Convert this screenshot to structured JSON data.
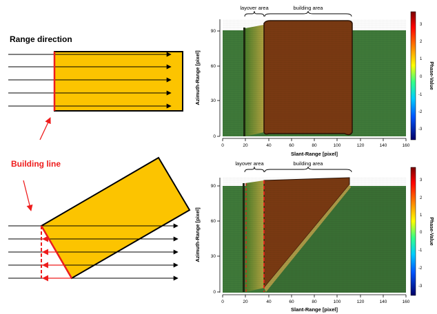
{
  "left": {
    "range_direction": "Range direction",
    "building_line": "Building line"
  },
  "colors": {
    "building": "#fcc400",
    "accent": "#ee1c1c",
    "ground": "#3f7a3a",
    "layover": "#8a8a2a",
    "roof": "#7a3a12"
  },
  "plots": [
    {
      "layover_label": "layover area",
      "building_label": "building area",
      "xlabel": "Slant-Range [pixel]",
      "ylabel": "Azimuth-Range [pixel]",
      "x_ticks": [
        "0",
        "20",
        "40",
        "60",
        "80",
        "100",
        "120",
        "140",
        "160"
      ],
      "y_ticks": [
        "0",
        "30",
        "60",
        "90"
      ],
      "colorbar_label": "Phase-Value",
      "colorbar_ticks": [
        "3",
        "2",
        "1",
        "0",
        "-1",
        "-2",
        "-3"
      ]
    },
    {
      "layover_label": "layover area",
      "building_label": "building area",
      "xlabel": "Slant-Range [pixel]",
      "ylabel": "Azimuth-Range [pixel]",
      "x_ticks": [
        "0",
        "20",
        "40",
        "60",
        "80",
        "100",
        "120",
        "140",
        "160"
      ],
      "y_ticks": [
        "0",
        "30",
        "60",
        "90"
      ],
      "colorbar_label": "Phase-Value",
      "colorbar_ticks": [
        "3",
        "2",
        "1",
        "0",
        "-1",
        "-2",
        "-3"
      ]
    }
  ]
}
